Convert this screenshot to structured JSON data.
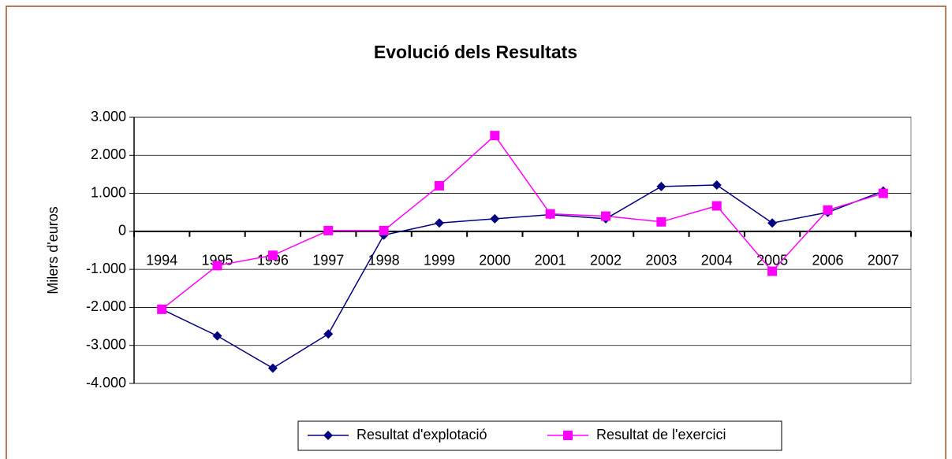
{
  "chart_data": {
    "type": "line",
    "title": "Evolució dels Resultats",
    "y_label": "Milers d'euros",
    "categories": [
      "1994",
      "1995",
      "1996",
      "1997",
      "1998",
      "1999",
      "2000",
      "2001",
      "2002",
      "2003",
      "2004",
      "2005",
      "2006",
      "2007"
    ],
    "series": [
      {
        "name": "Resultat d'explotació",
        "color": "#000080",
        "marker": "diamond",
        "values": [
          -2050,
          -2750,
          -3600,
          -2700,
          -100,
          220,
          330,
          440,
          330,
          1180,
          1220,
          220,
          500,
          1060
        ]
      },
      {
        "name": "Resultat de l'exercici",
        "color": "#ff00ff",
        "marker": "square",
        "values": [
          -2050,
          -900,
          -630,
          20,
          20,
          1200,
          2520,
          460,
          400,
          250,
          670,
          -1050,
          560,
          1000
        ]
      }
    ],
    "ylim": [
      -4000,
      3000
    ],
    "yticks": [
      {
        "value": -4000,
        "label": "-4.000"
      },
      {
        "value": -3000,
        "label": "-3.000"
      },
      {
        "value": -2000,
        "label": "-2.000"
      },
      {
        "value": -1000,
        "label": "-1.000"
      },
      0,
      {
        "value": 1000,
        "label": "1.000"
      },
      {
        "value": 2000,
        "label": "2.000"
      },
      {
        "value": 3000,
        "label": "3.000"
      }
    ],
    "grid": true,
    "legend": "bottom"
  }
}
